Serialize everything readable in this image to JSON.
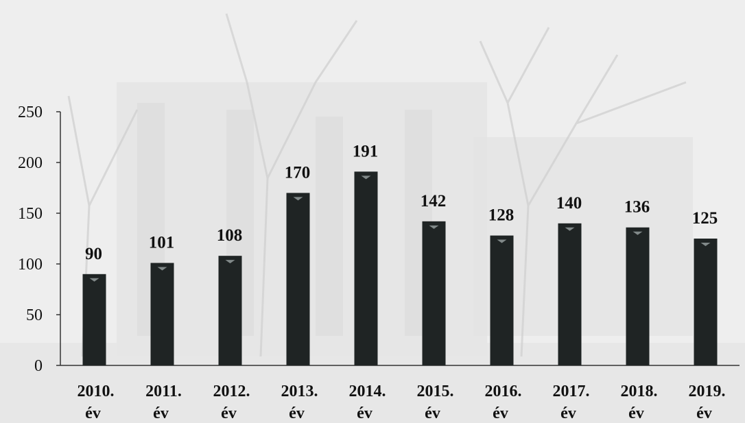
{
  "chart_data": {
    "type": "bar",
    "categories": [
      [
        "2010.",
        "év"
      ],
      [
        "2011.",
        "év"
      ],
      [
        "2012.",
        "év"
      ],
      [
        "2013.",
        "év"
      ],
      [
        "2014.",
        "év"
      ],
      [
        "2015.",
        "év"
      ],
      [
        "2016.",
        "év"
      ],
      [
        "2017.",
        "év"
      ],
      [
        "2018.",
        "év"
      ],
      [
        "2019.",
        "év"
      ]
    ],
    "values": [
      90,
      101,
      108,
      170,
      191,
      142,
      128,
      140,
      136,
      125
    ],
    "value_labels": [
      "90",
      "101",
      "108",
      "170",
      "191",
      "142",
      "128",
      "140",
      "136",
      "125"
    ],
    "title": "",
    "xlabel": "",
    "ylabel": "",
    "ylim": [
      0,
      250
    ],
    "yticks": [
      "0",
      "50",
      "100",
      "150",
      "200",
      "250"
    ],
    "grid": false,
    "legend": "none"
  },
  "colors": {
    "bar": "#1f2424",
    "bar_highlight": "#9aa3a3",
    "axis": "#333333",
    "text": "#111111"
  }
}
